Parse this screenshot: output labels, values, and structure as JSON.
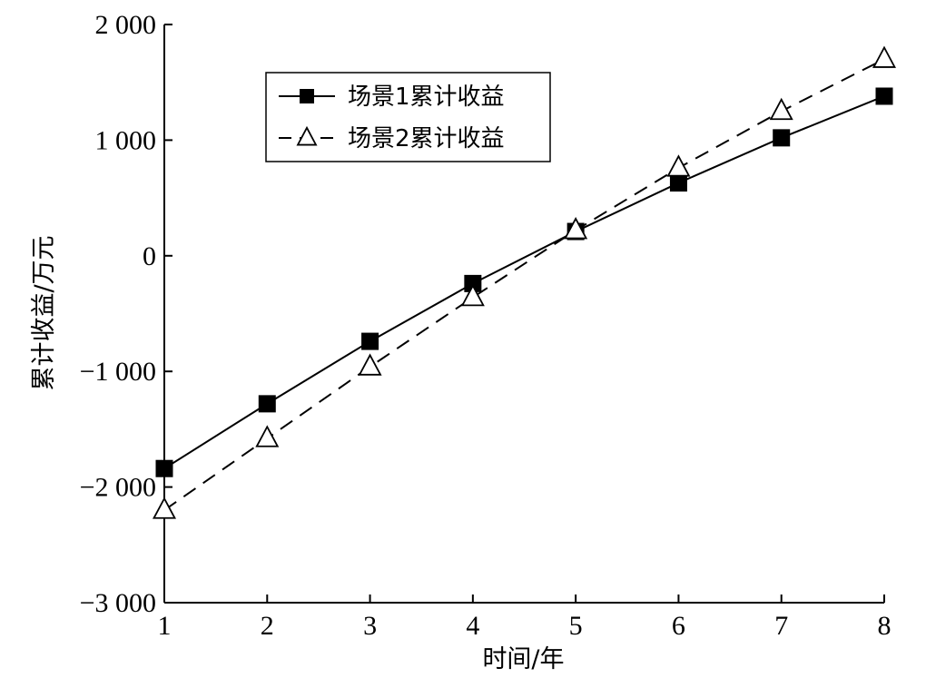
{
  "chart_data": {
    "type": "line",
    "xlabel": "时间/年",
    "ylabel": "累计收益/万元",
    "x": [
      1,
      2,
      3,
      4,
      5,
      6,
      7,
      8
    ],
    "xlim": [
      1,
      8
    ],
    "ylim": [
      -3000,
      2000
    ],
    "x_ticks": [
      1,
      2,
      3,
      4,
      5,
      6,
      7,
      8
    ],
    "x_tick_labels": [
      "1",
      "2",
      "3",
      "4",
      "5",
      "6",
      "7",
      "8"
    ],
    "y_ticks": [
      -3000,
      -2000,
      -1000,
      0,
      1000,
      2000
    ],
    "y_tick_labels": [
      "−3 000",
      "−2 000",
      "−1 000",
      "0",
      "1 000",
      "2 000"
    ],
    "grid": false,
    "legend_position": "top-left",
    "series": [
      {
        "name": "场景1累计收益",
        "values": [
          -1840,
          -1280,
          -740,
          -240,
          210,
          630,
          1020,
          1380
        ],
        "line_style": "solid",
        "marker": "filled-square",
        "color": "#000000"
      },
      {
        "name": "场景2累计收益",
        "values": [
          -2200,
          -1580,
          -960,
          -360,
          220,
          760,
          1250,
          1700
        ],
        "line_style": "dashed",
        "marker": "open-triangle",
        "color": "#000000"
      }
    ]
  }
}
